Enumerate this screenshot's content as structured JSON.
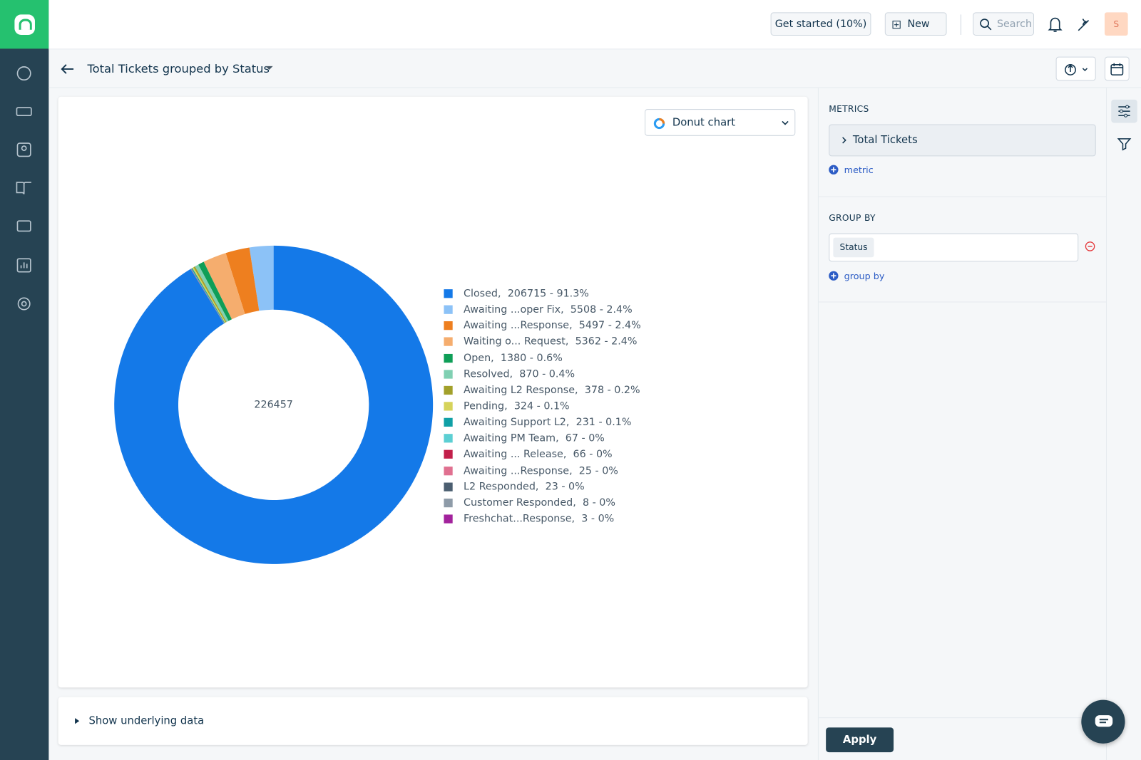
{
  "top_bar": {
    "get_started": "Get started (10%)",
    "new": "New",
    "search_placeholder": "Search",
    "avatar": "S"
  },
  "report": {
    "title": "Total Tickets grouped by Status"
  },
  "chart_type_select": "Donut chart",
  "chart_data": {
    "type": "donut",
    "center_label": 226457,
    "categories": [
      "Closed",
      "Awaiting ...oper Fix",
      "Awaiting ...Response",
      "Waiting o... Request",
      "Open",
      "Resolved",
      "Awaiting L2 Response",
      "Pending",
      "Awaiting Support L2",
      "Awaiting PM Team",
      "Awaiting ... Release",
      "Awaiting ...Response",
      "L2 Responded",
      "Customer Responded",
      "Freshchat...Response"
    ],
    "values": [
      206715,
      5508,
      5497,
      5362,
      1380,
      870,
      378,
      324,
      231,
      67,
      66,
      25,
      23,
      8,
      3
    ],
    "value_labels": [
      "206715 - 91.3%",
      "5508 - 2.4%",
      "5497 - 2.4%",
      "5362 - 2.4%",
      "1380 - 0.6%",
      "870 - 0.4%",
      "378 - 0.2%",
      "324 - 0.1%",
      "231 - 0.1%",
      "67 - 0%",
      "66 - 0%",
      "25 - 0%",
      "23 - 0%",
      "8 - 0%",
      "3 - 0%"
    ],
    "colors": [
      "#1479e8",
      "#8cc2f7",
      "#ee7f1f",
      "#f5ad6e",
      "#0e9e57",
      "#80d0b2",
      "#a2a02a",
      "#d6d35a",
      "#10a0a6",
      "#5ccfd3",
      "#c21f4a",
      "#e07090",
      "#4b5e70",
      "#8e9ba8",
      "#a2229c"
    ]
  },
  "underlying_data": "Show underlying data",
  "settings": {
    "metrics_heading": "METRICS",
    "metric": "Total Tickets",
    "add_metric": "metric",
    "group_by_heading": "GROUP BY",
    "group_by_value": "Status",
    "add_group_by": "group by",
    "apply": "Apply"
  }
}
